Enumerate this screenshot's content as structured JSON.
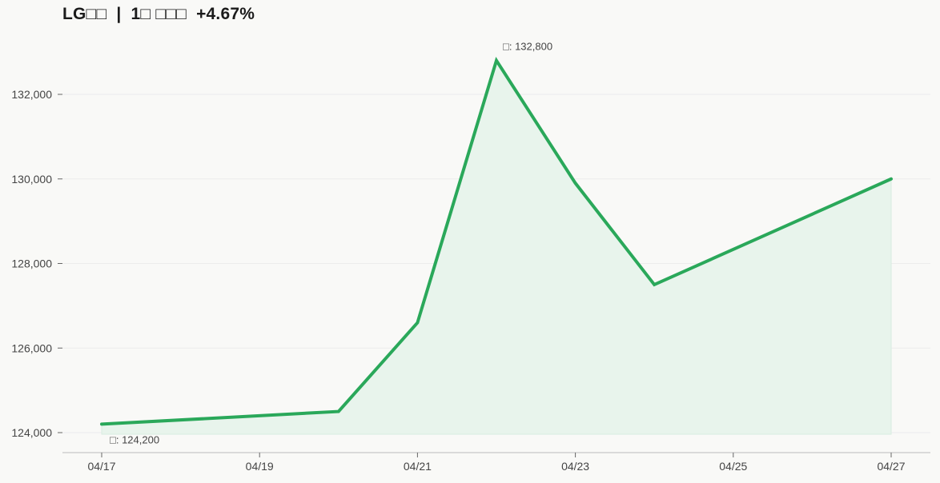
{
  "header": {
    "title": "LG□□  |  1□ □□□  +4.67%"
  },
  "chart_data": {
    "type": "area",
    "title": "LG□□  |  1□ □□□  +4.67%",
    "x": [
      "04/17",
      "04/18",
      "04/19",
      "04/20",
      "04/21",
      "04/22",
      "04/23",
      "04/24",
      "04/25",
      "04/26",
      "04/27"
    ],
    "series": [
      {
        "values": [
          124200,
          null,
          null,
          124500,
          126600,
          132800,
          129900,
          127500,
          null,
          null,
          130000
        ]
      }
    ],
    "x_ticks": [
      "04/17",
      "04/19",
      "04/21",
      "04/23",
      "04/25",
      "04/27"
    ],
    "y_ticks": [
      124000,
      126000,
      128000,
      130000,
      132000
    ],
    "y_tick_labels": [
      "124,000",
      "126,000",
      "128,000",
      "130,000",
      "132,000"
    ],
    "ylim": [
      123500,
      133300
    ],
    "xlabel": "",
    "ylabel": "",
    "grid": "horizontal",
    "annotations": [
      {
        "x": "04/22",
        "label": "□: 132,800"
      },
      {
        "x": "04/17",
        "label": "□: 124,200"
      }
    ],
    "colors": {
      "line": "#2aa85a",
      "fill": "#e8f4ec",
      "grid": "#ececec",
      "axis": "#c8c8c8"
    }
  }
}
